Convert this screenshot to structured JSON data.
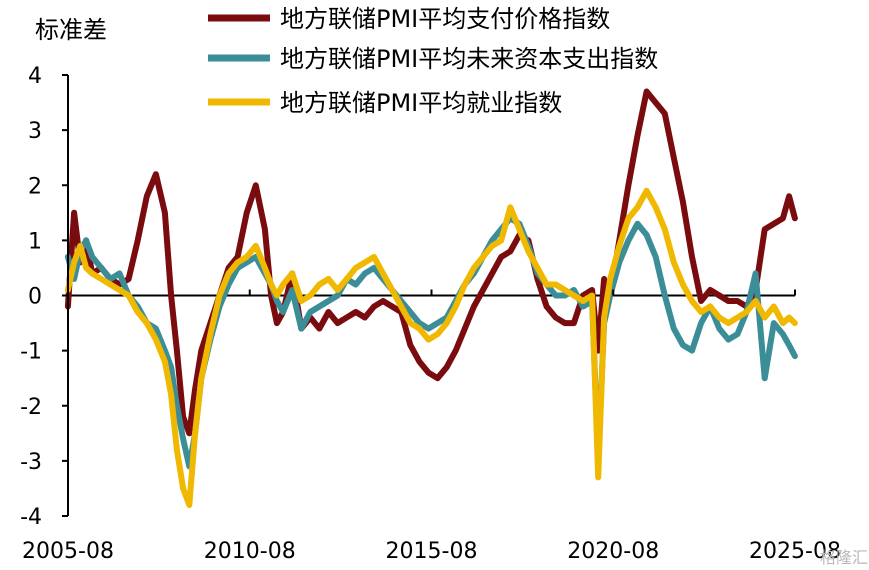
{
  "chart_data": {
    "type": "line",
    "ylabel": "标准差",
    "xlabel": "",
    "ylim": [
      -4,
      4
    ],
    "y_ticks": [
      "-4",
      "-3",
      "-2",
      "-1",
      "0",
      "1",
      "2",
      "3",
      "4"
    ],
    "x_ticks": [
      "2005-08",
      "2010-08",
      "2015-08",
      "2020-08",
      "2025-08"
    ],
    "x_start": 2005.583,
    "x_end": 2025.583,
    "legend_position": "top",
    "watermark": "格隆汇",
    "series": [
      {
        "name": "地方联储PMI平均支付价格指数",
        "color": "#7a0c10",
        "x": [
          2005.58,
          2005.75,
          2005.92,
          2006.08,
          2006.25,
          2006.5,
          2006.75,
          2007.0,
          2007.25,
          2007.5,
          2007.75,
          2008.0,
          2008.25,
          2008.42,
          2008.58,
          2008.75,
          2008.92,
          2009.08,
          2009.25,
          2009.5,
          2009.75,
          2010.0,
          2010.25,
          2010.5,
          2010.75,
          2011.0,
          2011.17,
          2011.33,
          2011.5,
          2011.75,
          2012.0,
          2012.25,
          2012.5,
          2012.75,
          2013.0,
          2013.25,
          2013.5,
          2013.75,
          2014.0,
          2014.25,
          2014.5,
          2014.75,
          2015.0,
          2015.25,
          2015.5,
          2015.75,
          2016.0,
          2016.25,
          2016.5,
          2016.75,
          2017.0,
          2017.25,
          2017.5,
          2017.75,
          2018.0,
          2018.25,
          2018.5,
          2018.75,
          2019.0,
          2019.25,
          2019.5,
          2019.75,
          2020.0,
          2020.17,
          2020.33,
          2020.5,
          2020.75,
          2021.0,
          2021.25,
          2021.5,
          2021.75,
          2022.0,
          2022.25,
          2022.5,
          2022.75,
          2023.0,
          2023.25,
          2023.5,
          2023.75,
          2024.0,
          2024.25,
          2024.5,
          2024.75,
          2025.0,
          2025.25,
          2025.42,
          2025.58
        ],
        "values": [
          -0.2,
          1.5,
          0.6,
          1.0,
          0.4,
          0.5,
          0.3,
          0.2,
          0.3,
          1.0,
          1.8,
          2.2,
          1.5,
          0.0,
          -1.0,
          -2.2,
          -2.5,
          -1.7,
          -1.0,
          -0.5,
          0.0,
          0.5,
          0.7,
          1.5,
          2.0,
          1.2,
          0.0,
          -0.5,
          -0.3,
          0.4,
          -0.6,
          -0.4,
          -0.6,
          -0.3,
          -0.5,
          -0.4,
          -0.3,
          -0.4,
          -0.2,
          -0.1,
          -0.2,
          -0.3,
          -0.9,
          -1.2,
          -1.4,
          -1.5,
          -1.3,
          -1.0,
          -0.6,
          -0.2,
          0.1,
          0.4,
          0.7,
          0.8,
          1.1,
          1.0,
          0.3,
          -0.2,
          -0.4,
          -0.5,
          -0.5,
          0.0,
          0.1,
          -1.0,
          0.3,
          0.0,
          1.0,
          2.0,
          2.9,
          3.7,
          3.5,
          3.3,
          2.5,
          1.7,
          0.7,
          -0.1,
          0.1,
          0.0,
          -0.1,
          -0.1,
          -0.2,
          0.1,
          1.2,
          1.3,
          1.4,
          1.8,
          1.4
        ]
      },
      {
        "name": "地方联储PMI平均未来资本支出指数",
        "color": "#3b8e97",
        "x": [
          2005.58,
          2005.75,
          2005.92,
          2006.08,
          2006.25,
          2006.5,
          2006.75,
          2007.0,
          2007.25,
          2007.5,
          2007.75,
          2008.0,
          2008.25,
          2008.42,
          2008.58,
          2008.75,
          2008.92,
          2009.08,
          2009.25,
          2009.5,
          2009.75,
          2010.0,
          2010.25,
          2010.5,
          2010.75,
          2011.0,
          2011.17,
          2011.33,
          2011.5,
          2011.75,
          2012.0,
          2012.25,
          2012.5,
          2012.75,
          2013.0,
          2013.25,
          2013.5,
          2013.75,
          2014.0,
          2014.25,
          2014.5,
          2014.75,
          2015.0,
          2015.25,
          2015.5,
          2015.75,
          2016.0,
          2016.25,
          2016.5,
          2016.75,
          2017.0,
          2017.25,
          2017.5,
          2017.75,
          2018.0,
          2018.25,
          2018.5,
          2018.75,
          2019.0,
          2019.25,
          2019.5,
          2019.75,
          2020.0,
          2020.17,
          2020.33,
          2020.5,
          2020.75,
          2021.0,
          2021.25,
          2021.5,
          2021.75,
          2022.0,
          2022.25,
          2022.5,
          2022.75,
          2023.0,
          2023.25,
          2023.5,
          2023.75,
          2024.0,
          2024.25,
          2024.5,
          2024.75,
          2025.0,
          2025.25,
          2025.42,
          2025.58
        ],
        "values": [
          0.7,
          0.3,
          0.8,
          1.0,
          0.7,
          0.5,
          0.3,
          0.4,
          0.0,
          -0.2,
          -0.5,
          -0.6,
          -1.0,
          -1.3,
          -2.0,
          -2.6,
          -3.1,
          -2.5,
          -1.5,
          -0.8,
          -0.2,
          0.2,
          0.5,
          0.6,
          0.7,
          0.4,
          0.2,
          -0.1,
          -0.3,
          0.1,
          -0.6,
          -0.3,
          -0.2,
          -0.1,
          0.0,
          0.3,
          0.2,
          0.4,
          0.5,
          0.3,
          0.1,
          -0.1,
          -0.3,
          -0.5,
          -0.6,
          -0.5,
          -0.4,
          -0.1,
          0.2,
          0.4,
          0.7,
          1.0,
          1.2,
          1.4,
          1.3,
          0.9,
          0.4,
          0.2,
          0.0,
          0.0,
          0.1,
          -0.2,
          -0.1,
          -3.0,
          -0.5,
          0.0,
          0.6,
          1.0,
          1.3,
          1.1,
          0.7,
          0.0,
          -0.6,
          -0.9,
          -1.0,
          -0.5,
          -0.2,
          -0.6,
          -0.8,
          -0.7,
          -0.3,
          0.4,
          -1.5,
          -0.5,
          -0.7,
          -0.9,
          -1.1
        ]
      },
      {
        "name": "地方联储PMI平均就业指数",
        "color": "#f0b800",
        "x": [
          2005.58,
          2005.75,
          2005.92,
          2006.08,
          2006.25,
          2006.5,
          2006.75,
          2007.0,
          2007.25,
          2007.5,
          2007.75,
          2008.0,
          2008.25,
          2008.42,
          2008.58,
          2008.75,
          2008.92,
          2009.08,
          2009.25,
          2009.5,
          2009.75,
          2010.0,
          2010.25,
          2010.5,
          2010.75,
          2011.0,
          2011.17,
          2011.33,
          2011.5,
          2011.75,
          2012.0,
          2012.25,
          2012.5,
          2012.75,
          2013.0,
          2013.25,
          2013.5,
          2013.75,
          2014.0,
          2014.25,
          2014.5,
          2014.75,
          2015.0,
          2015.25,
          2015.5,
          2015.75,
          2016.0,
          2016.25,
          2016.5,
          2016.75,
          2017.0,
          2017.25,
          2017.5,
          2017.75,
          2018.0,
          2018.25,
          2018.5,
          2018.75,
          2019.0,
          2019.25,
          2019.5,
          2019.75,
          2020.0,
          2020.17,
          2020.33,
          2020.5,
          2020.75,
          2021.0,
          2021.25,
          2021.5,
          2021.75,
          2022.0,
          2022.25,
          2022.5,
          2022.75,
          2023.0,
          2023.25,
          2023.5,
          2023.75,
          2024.0,
          2024.25,
          2024.5,
          2024.75,
          2025.0,
          2025.25,
          2025.42,
          2025.58
        ],
        "values": [
          0.1,
          0.6,
          0.9,
          0.5,
          0.4,
          0.3,
          0.2,
          0.1,
          0.0,
          -0.3,
          -0.5,
          -0.8,
          -1.2,
          -1.8,
          -2.8,
          -3.5,
          -3.8,
          -2.5,
          -1.5,
          -0.7,
          0.0,
          0.4,
          0.6,
          0.7,
          0.9,
          0.5,
          0.2,
          0.0,
          0.2,
          0.4,
          -0.1,
          0.0,
          0.2,
          0.3,
          0.1,
          0.3,
          0.5,
          0.6,
          0.7,
          0.4,
          0.1,
          -0.2,
          -0.5,
          -0.6,
          -0.8,
          -0.7,
          -0.5,
          -0.2,
          0.2,
          0.5,
          0.7,
          0.9,
          1.0,
          1.6,
          1.2,
          0.8,
          0.5,
          0.2,
          0.2,
          0.1,
          0.0,
          -0.1,
          0.0,
          -3.3,
          -0.4,
          0.3,
          0.9,
          1.4,
          1.6,
          1.9,
          1.6,
          1.2,
          0.6,
          0.2,
          -0.1,
          -0.3,
          -0.2,
          -0.4,
          -0.5,
          -0.4,
          -0.3,
          -0.1,
          -0.4,
          -0.2,
          -0.5,
          -0.4,
          -0.5
        ]
      }
    ]
  }
}
